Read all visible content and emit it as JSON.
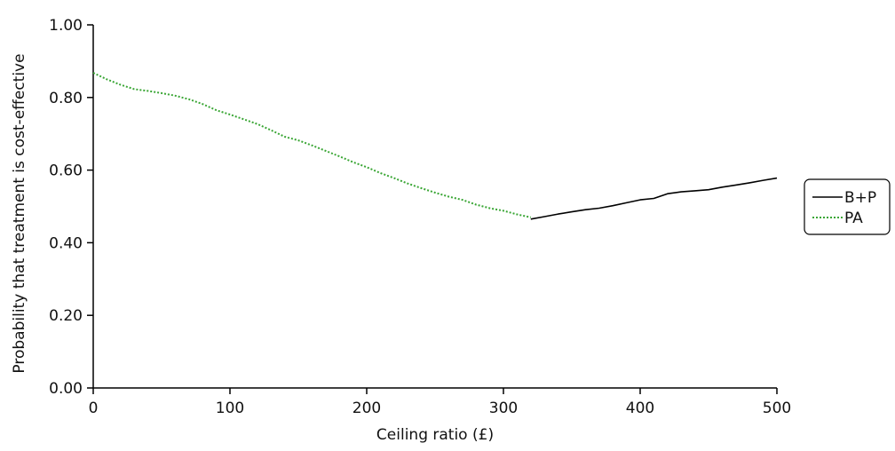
{
  "chart_data": {
    "type": "line",
    "title": "",
    "xlabel": "Ceiling ratio (£)",
    "ylabel": "Probability that treatment is cost-effective",
    "xlim": [
      0,
      500
    ],
    "ylim": [
      0,
      1
    ],
    "x_ticks": [
      "0",
      "100",
      "200",
      "300",
      "400",
      "500"
    ],
    "y_ticks": [
      "0.00",
      "0.20",
      "0.40",
      "0.60",
      "0.80",
      "1.00"
    ],
    "grid": false,
    "legend_position": "right",
    "series": [
      {
        "name": "B+P",
        "color": "#000000",
        "style": "solid",
        "x": [
          320,
          330,
          340,
          350,
          360,
          370,
          380,
          390,
          400,
          410,
          420,
          430,
          440,
          450,
          460,
          470,
          480,
          490,
          500
        ],
        "y": [
          0.465,
          0.472,
          0.479,
          0.485,
          0.491,
          0.495,
          0.502,
          0.51,
          0.518,
          0.522,
          0.535,
          0.54,
          0.543,
          0.546,
          0.553,
          0.559,
          0.565,
          0.572,
          0.578
        ]
      },
      {
        "name": "PA",
        "color": "#3aa635",
        "style": "dotted",
        "x": [
          0,
          10,
          20,
          30,
          40,
          50,
          60,
          70,
          80,
          90,
          100,
          110,
          120,
          130,
          140,
          150,
          160,
          170,
          180,
          190,
          200,
          210,
          220,
          230,
          240,
          250,
          260,
          270,
          280,
          290,
          300,
          310,
          320
        ],
        "y": [
          0.868,
          0.85,
          0.835,
          0.823,
          0.818,
          0.812,
          0.805,
          0.795,
          0.782,
          0.765,
          0.753,
          0.74,
          0.727,
          0.71,
          0.692,
          0.682,
          0.668,
          0.653,
          0.638,
          0.622,
          0.608,
          0.592,
          0.578,
          0.563,
          0.55,
          0.538,
          0.527,
          0.518,
          0.505,
          0.495,
          0.488,
          0.478,
          0.47
        ]
      }
    ]
  }
}
